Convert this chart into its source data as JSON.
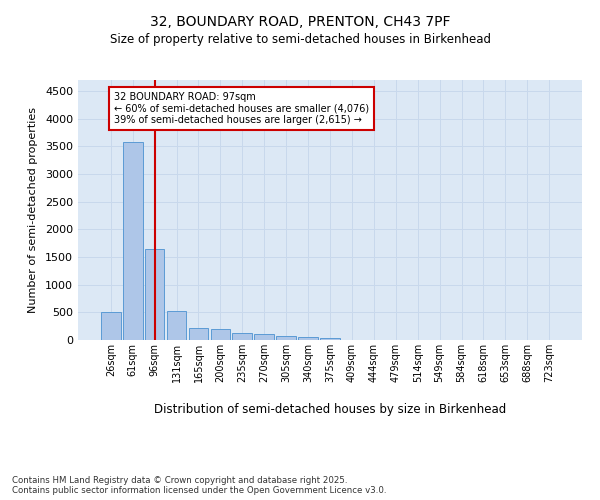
{
  "title_line1": "32, BOUNDARY ROAD, PRENTON, CH43 7PF",
  "title_line2": "Size of property relative to semi-detached houses in Birkenhead",
  "xlabel": "Distribution of semi-detached houses by size in Birkenhead",
  "ylabel": "Number of semi-detached properties",
  "footnote": "Contains HM Land Registry data © Crown copyright and database right 2025.\nContains public sector information licensed under the Open Government Licence v3.0.",
  "categories": [
    "26sqm",
    "61sqm",
    "96sqm",
    "131sqm",
    "165sqm",
    "200sqm",
    "235sqm",
    "270sqm",
    "305sqm",
    "340sqm",
    "375sqm",
    "409sqm",
    "444sqm",
    "479sqm",
    "514sqm",
    "549sqm",
    "584sqm",
    "618sqm",
    "653sqm",
    "688sqm",
    "723sqm"
  ],
  "values": [
    500,
    3580,
    1650,
    530,
    220,
    200,
    130,
    100,
    65,
    55,
    45,
    0,
    0,
    0,
    0,
    0,
    0,
    0,
    0,
    0,
    0
  ],
  "bar_color": "#aec6e8",
  "bar_edge_color": "#5b9bd5",
  "grid_color": "#c8d8ec",
  "background_color": "#dce8f5",
  "annotation_box_color": "#cc0000",
  "vline_x_index": 2,
  "vline_color": "#cc0000",
  "ylim": [
    0,
    4700
  ],
  "yticks": [
    0,
    500,
    1000,
    1500,
    2000,
    2500,
    3000,
    3500,
    4000,
    4500
  ],
  "figsize": [
    6.0,
    5.0
  ],
  "dpi": 100,
  "annotation_line1": "32 BOUNDARY ROAD: 97sqm",
  "annotation_line2": "← 60% of semi-detached houses are smaller (4,076)",
  "annotation_line3": "39% of semi-detached houses are larger (2,615) →"
}
